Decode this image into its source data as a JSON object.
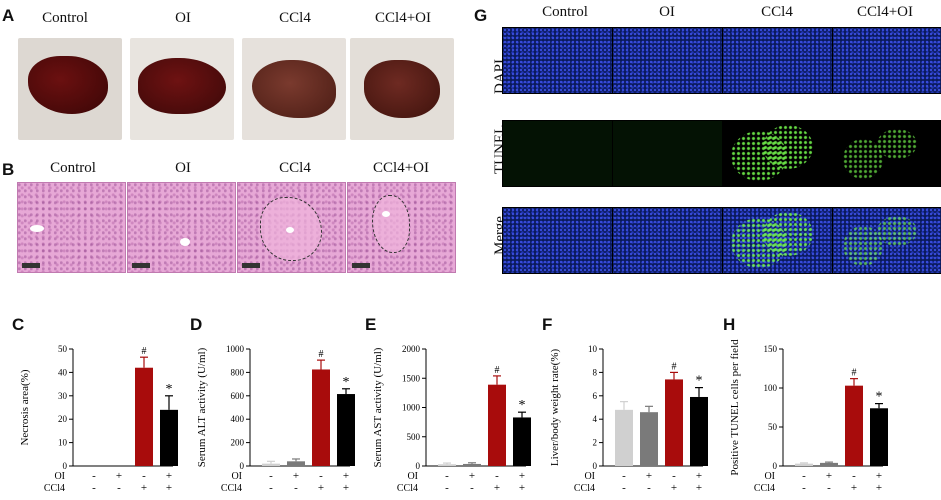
{
  "panel_labels": [
    "A",
    "B",
    "C",
    "D",
    "E",
    "F",
    "G",
    "H"
  ],
  "groups": [
    "Control",
    "OI",
    "CCl4",
    "CCl4+OI"
  ],
  "fluor_rows": [
    "DAPI",
    "TUNEL",
    "Merge"
  ],
  "treatment": {
    "row1": "OI",
    "row2": "CCl4",
    "signs_oi": [
      "-",
      "+",
      "-",
      "+"
    ],
    "signs_ccl4": [
      "-",
      "-",
      "+",
      "+"
    ]
  },
  "colors": {
    "control": "#d0d0d0",
    "oi": "#7a7a7a",
    "ccl4": "#a80c0c",
    "ccl4oi": "#000000"
  },
  "chart_data": [
    {
      "panel": "C",
      "type": "bar",
      "categories": [
        "Control",
        "OI",
        "CCl4",
        "CCl4+OI"
      ],
      "values": [
        0,
        0,
        42,
        24
      ],
      "errors": [
        0,
        0,
        4.5,
        6
      ],
      "ylabel": "Necrosis area(%)",
      "ylim": [
        0,
        50
      ],
      "yticks": [
        0,
        10,
        20,
        30,
        40,
        50
      ],
      "marks": [
        "",
        "",
        "#",
        "*"
      ]
    },
    {
      "panel": "D",
      "type": "bar",
      "categories": [
        "Control",
        "OI",
        "CCl4",
        "CCl4+OI"
      ],
      "values": [
        20,
        40,
        825,
        615
      ],
      "errors": [
        20,
        20,
        80,
        45
      ],
      "ylabel": "Serum ALT activity (U/ml)",
      "ylim": [
        0,
        1000
      ],
      "yticks": [
        0,
        200,
        400,
        600,
        800,
        1000
      ],
      "marks": [
        "",
        "",
        "#",
        "*"
      ]
    },
    {
      "panel": "E",
      "type": "bar",
      "categories": [
        "Control",
        "OI",
        "CCl4",
        "CCl4+OI"
      ],
      "values": [
        30,
        35,
        1390,
        830
      ],
      "errors": [
        20,
        20,
        150,
        90
      ],
      "ylabel": "Serum AST activity (U/ml)",
      "ylim": [
        0,
        2000
      ],
      "yticks": [
        0,
        500,
        1000,
        1500,
        2000
      ],
      "marks": [
        "",
        "",
        "#",
        "*"
      ]
    },
    {
      "panel": "F",
      "type": "bar",
      "categories": [
        "Control",
        "OI",
        "CCl4",
        "CCl4+OI"
      ],
      "values": [
        4.8,
        4.6,
        7.4,
        5.9
      ],
      "errors": [
        0.7,
        0.5,
        0.6,
        0.8
      ],
      "ylabel": "Liver/body weight rate(%)",
      "ylim": [
        0,
        10
      ],
      "yticks": [
        0,
        2,
        4,
        6,
        8,
        10
      ],
      "marks": [
        "",
        "",
        "#",
        "*"
      ]
    },
    {
      "panel": "H",
      "type": "bar",
      "categories": [
        "Control",
        "OI",
        "CCl4",
        "CCl4+OI"
      ],
      "values": [
        3,
        4,
        103,
        74
      ],
      "errors": [
        1,
        1,
        9,
        6
      ],
      "ylabel": "Positive TUNEL cells per field",
      "ylim": [
        0,
        150
      ],
      "yticks": [
        0,
        50,
        100,
        150
      ],
      "marks": [
        "",
        "",
        "#",
        "*"
      ]
    }
  ]
}
